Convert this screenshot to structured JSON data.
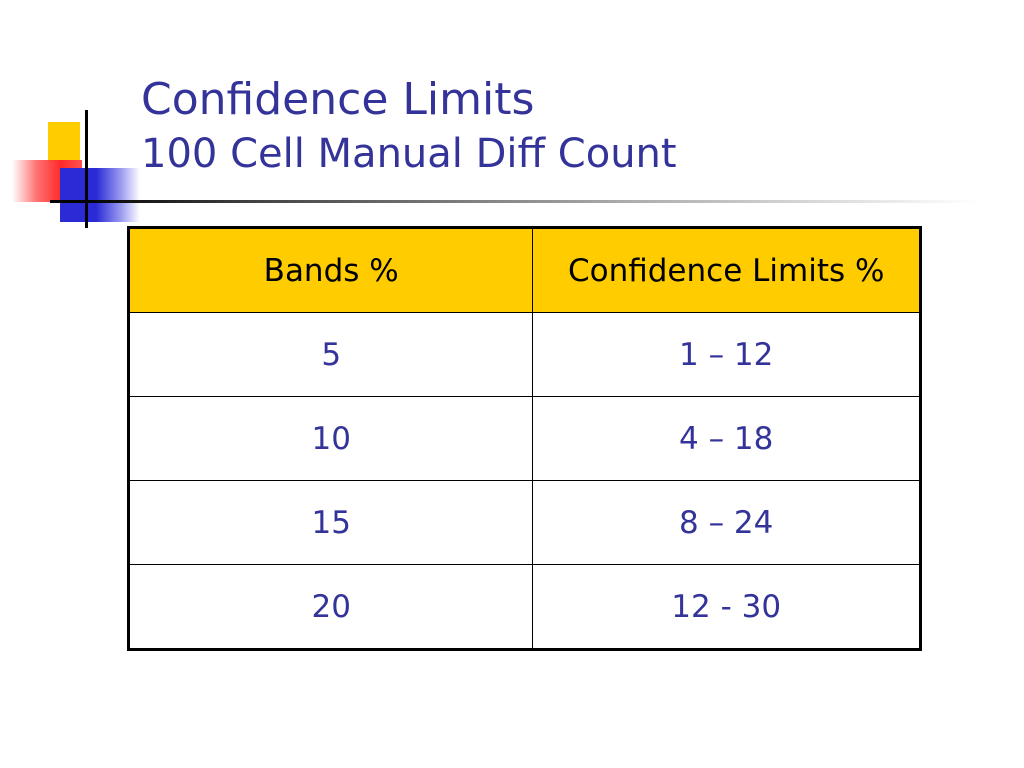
{
  "slide": {
    "title": "Confidence Limits",
    "subtitle": "100 Cell Manual Diff Count"
  },
  "table": {
    "headers": [
      "Bands %",
      "Confidence Limits %"
    ],
    "rows": [
      [
        "5",
        "1 – 12"
      ],
      [
        "10",
        "4 – 18"
      ],
      [
        "15",
        "8 – 24"
      ],
      [
        "20",
        "12 - 30"
      ]
    ]
  },
  "colors": {
    "title": "#333399",
    "header_fill": "#ffcc00",
    "cell_text": "#333399",
    "logo_yellow": "#ffcc00",
    "logo_red": "#ff2a2a",
    "logo_blue": "#2a2ad6"
  }
}
